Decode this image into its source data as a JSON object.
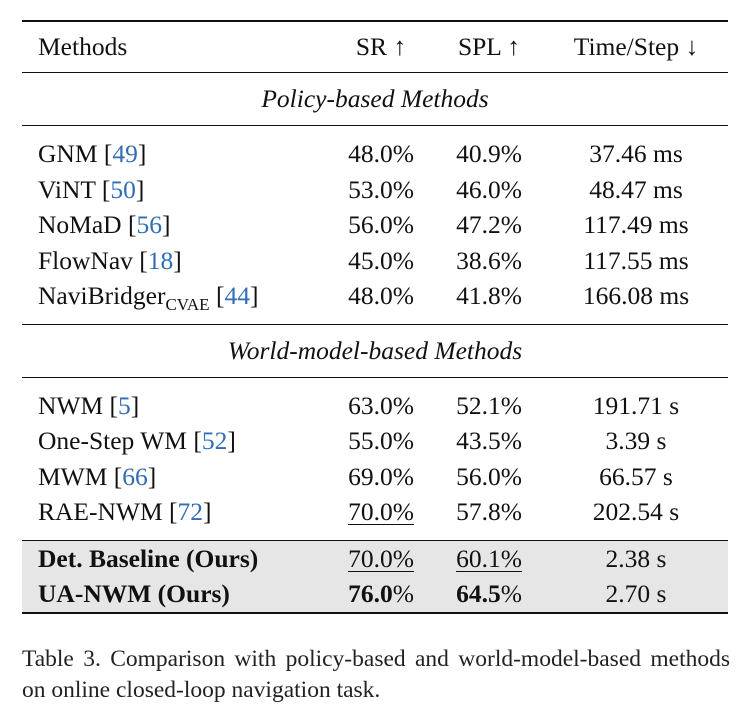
{
  "table": {
    "columns": [
      "Methods",
      "SR ↑",
      "SPL ↑",
      "Time/Step ↓"
    ],
    "sections": [
      {
        "title": "Policy-based Methods",
        "rows": [
          {
            "method": "GNM",
            "sub": "",
            "ref": "49",
            "sr": "48.0%",
            "spl": "40.9%",
            "time": "37.46 ms"
          },
          {
            "method": "ViNT",
            "sub": "",
            "ref": "50",
            "sr": "53.0%",
            "spl": "46.0%",
            "time": "48.47 ms"
          },
          {
            "method": "NoMaD",
            "sub": "",
            "ref": "56",
            "sr": "56.0%",
            "spl": "47.2%",
            "time": "117.49 ms"
          },
          {
            "method": "FlowNav",
            "sub": "",
            "ref": "18",
            "sr": "45.0%",
            "spl": "38.6%",
            "time": "117.55 ms"
          },
          {
            "method": "NaviBridger",
            "sub": "CVAE",
            "ref": "44",
            "sr": "48.0%",
            "spl": "41.8%",
            "time": "166.08 ms"
          }
        ]
      },
      {
        "title": "World-model-based Methods",
        "rows": [
          {
            "method": "NWM",
            "sub": "",
            "ref": "5",
            "sr": "63.0%",
            "spl": "52.1%",
            "time": "191.71 s"
          },
          {
            "method": "One-Step WM",
            "sub": "",
            "ref": "52",
            "sr": "55.0%",
            "spl": "43.5%",
            "time": "3.39 s"
          },
          {
            "method": "MWM",
            "sub": "",
            "ref": "66",
            "sr": "69.0%",
            "spl": "56.0%",
            "time": "66.57 s"
          },
          {
            "method": "RAE-NWM",
            "sub": "",
            "ref": "72",
            "sr": "70.0%",
            "spl": "57.8%",
            "time": "202.54 s"
          }
        ]
      }
    ],
    "ours": [
      {
        "method": "Det. Baseline (Ours)",
        "sr": "70.0%",
        "spl": "60.1%",
        "time": "2.38 s"
      },
      {
        "method": "UA-NWM (Ours)",
        "sr_num": "76.0",
        "sr_pct": "%",
        "spl_num": "64.5",
        "spl_pct": "%",
        "time": "2.70 s"
      }
    ]
  },
  "caption": "Table 3.  Comparison with policy-based and world-model-based methods on online closed-loop navigation task."
}
